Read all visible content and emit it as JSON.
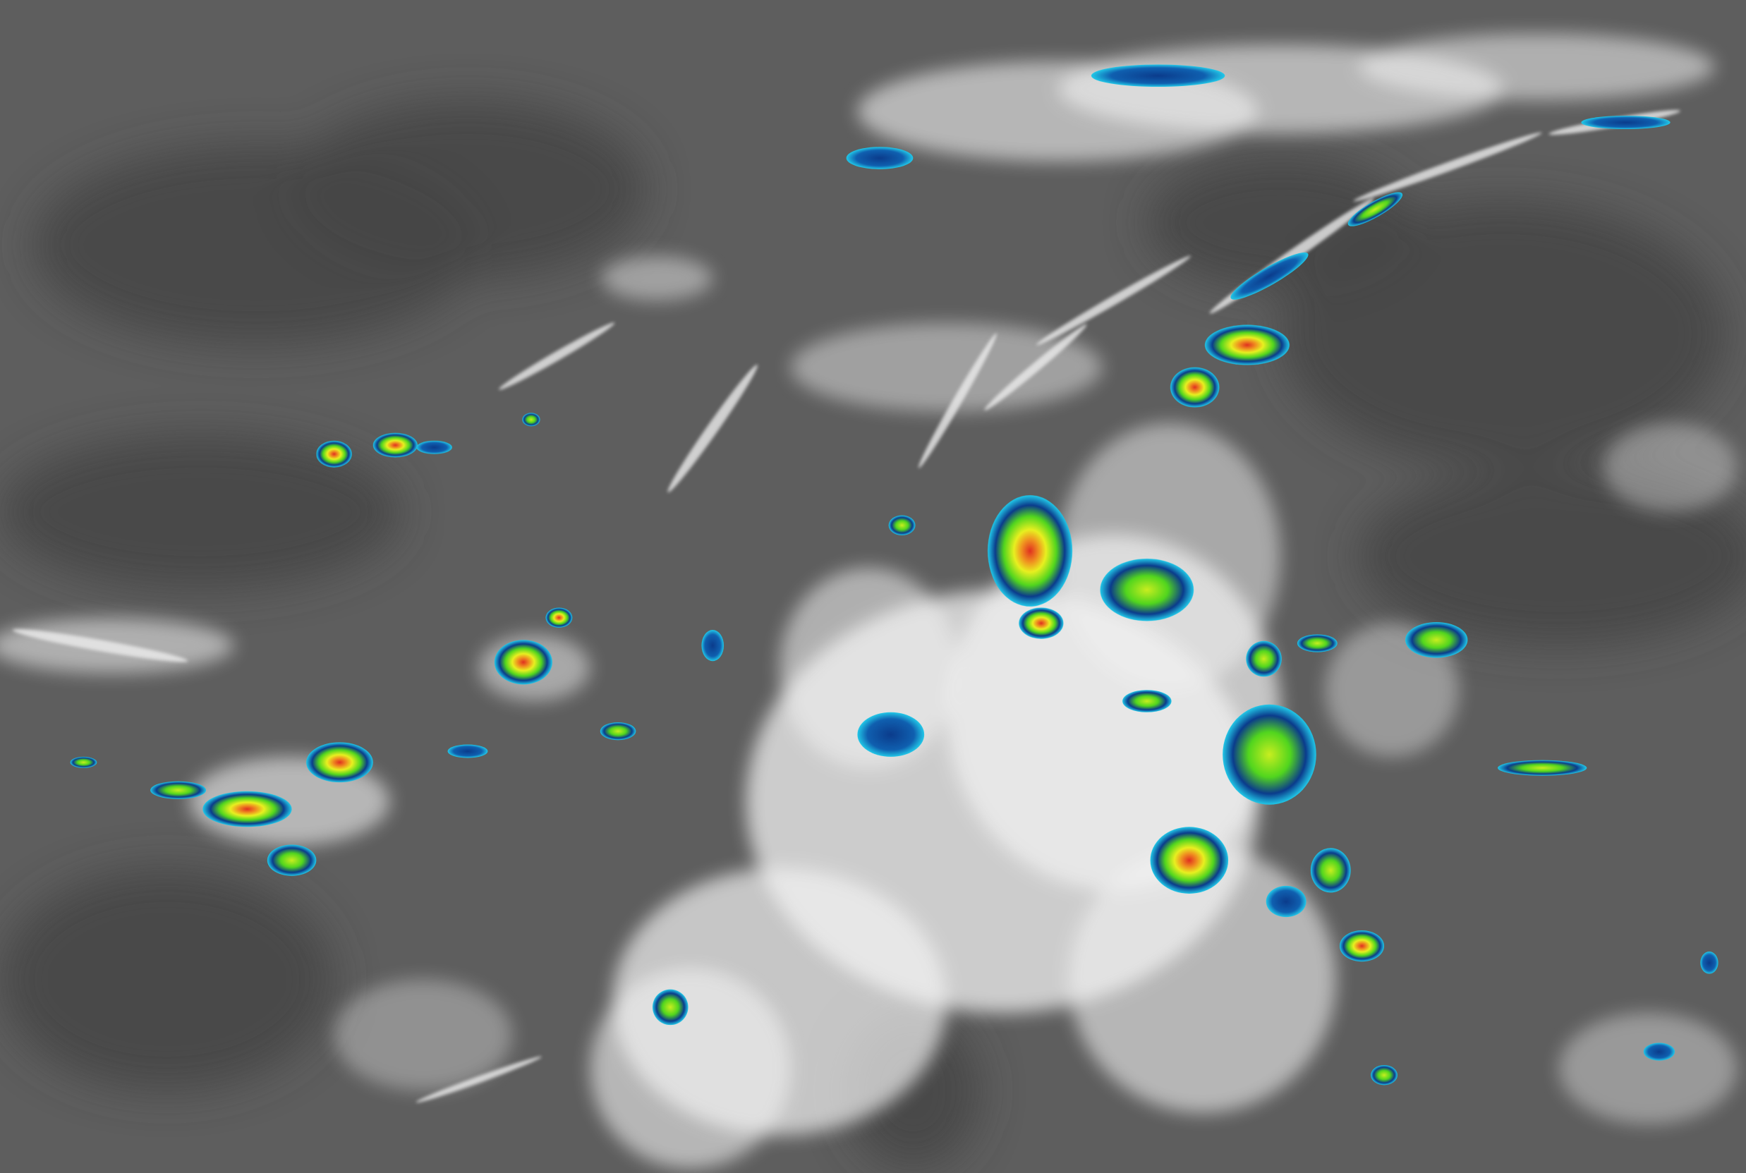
{
  "image": {
    "kind": "infrared satellite imagery",
    "colors": {
      "clear_background": "#5c5c5c",
      "dark_region": "#474747",
      "cloud_white": "#f2f2f2",
      "cold_top_cyan": "#22c8e8",
      "cold_top_blue": "#0b3c8c",
      "cold_top_green": "#52d61e",
      "cold_top_yellow": "#e8f020",
      "cold_top_red": "#e03020"
    }
  }
}
